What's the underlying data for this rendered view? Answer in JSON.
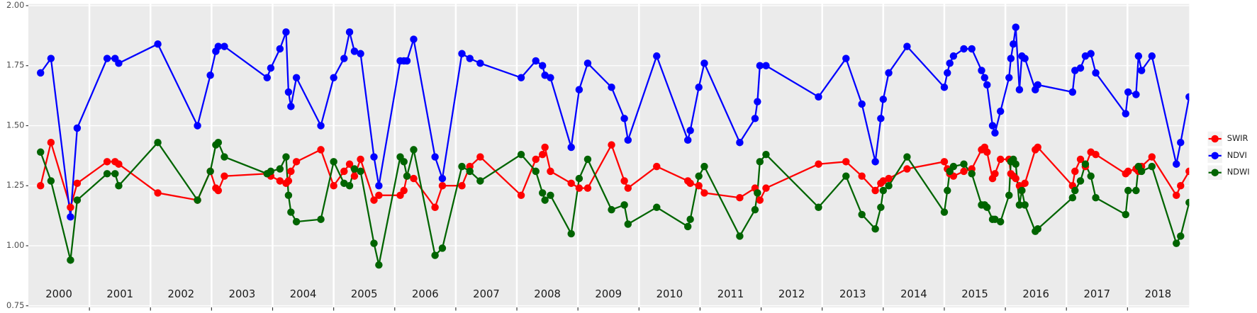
{
  "chart_data": {
    "type": "line",
    "x": [
      2000.2,
      2000.37,
      2000.69,
      2000.8,
      2001.29,
      2001.42,
      2001.48,
      2002.12,
      2002.77,
      2002.98,
      2003.07,
      2003.11,
      2003.21,
      2003.91,
      2003.97,
      2004.12,
      2004.22,
      2004.26,
      2004.3,
      2004.39,
      2004.79,
      2005.0,
      2005.17,
      2005.26,
      2005.34,
      2005.44,
      2005.66,
      2005.74,
      2006.09,
      2006.15,
      2006.2,
      2006.31,
      2006.66,
      2006.78,
      2007.1,
      2007.23,
      2007.4,
      2008.07,
      2008.31,
      2008.42,
      2008.46,
      2008.55,
      2008.89,
      2009.02,
      2009.16,
      2009.55,
      2009.76,
      2009.82,
      2010.29,
      2010.8,
      2010.84,
      2010.98,
      2011.07,
      2011.65,
      2011.9,
      2011.94,
      2011.98,
      2012.08,
      2012.94,
      2013.39,
      2013.65,
      2013.87,
      2013.96,
      2014.0,
      2014.09,
      2014.39,
      2015.0,
      2015.05,
      2015.09,
      2015.15,
      2015.32,
      2015.45,
      2015.61,
      2015.66,
      2015.7,
      2015.79,
      2015.83,
      2015.92,
      2016.06,
      2016.09,
      2016.13,
      2016.17,
      2016.23,
      2016.27,
      2016.32,
      2016.49,
      2016.53,
      2017.1,
      2017.14,
      2017.23,
      2017.31,
      2017.4,
      2017.48,
      2017.97,
      2018.01,
      2018.14,
      2018.18,
      2018.23,
      2018.4,
      2018.8,
      2018.87,
      2019.01
    ],
    "series": [
      {
        "name": "SWIR",
        "color": "#ff0000",
        "values": [
          1.25,
          1.43,
          1.16,
          1.26,
          1.35,
          1.35,
          1.34,
          1.22,
          1.19,
          1.31,
          1.24,
          1.23,
          1.29,
          1.3,
          1.29,
          1.27,
          1.26,
          1.27,
          1.31,
          1.35,
          1.4,
          1.25,
          1.31,
          1.34,
          1.29,
          1.36,
          1.19,
          1.21,
          1.21,
          1.23,
          1.29,
          1.28,
          1.16,
          1.25,
          1.25,
          1.33,
          1.37,
          1.21,
          1.36,
          1.38,
          1.41,
          1.31,
          1.26,
          1.24,
          1.24,
          1.42,
          1.27,
          1.24,
          1.33,
          1.27,
          1.26,
          1.25,
          1.22,
          1.2,
          1.24,
          1.22,
          1.19,
          1.24,
          1.34,
          1.35,
          1.29,
          1.23,
          1.26,
          1.27,
          1.28,
          1.32,
          1.35,
          1.32,
          1.3,
          1.29,
          1.31,
          1.32,
          1.4,
          1.41,
          1.39,
          1.28,
          1.3,
          1.36,
          1.36,
          1.3,
          1.29,
          1.28,
          1.25,
          1.23,
          1.26,
          1.4,
          1.41,
          1.25,
          1.31,
          1.36,
          1.33,
          1.39,
          1.38,
          1.3,
          1.31,
          1.32,
          1.31,
          1.33,
          1.37,
          1.21,
          1.25,
          1.31
        ]
      },
      {
        "name": "NDVI",
        "color": "#0000ff",
        "values": [
          1.72,
          1.78,
          1.12,
          1.49,
          1.78,
          1.78,
          1.76,
          1.84,
          1.5,
          1.71,
          1.81,
          1.83,
          1.83,
          1.7,
          1.74,
          1.82,
          1.89,
          1.64,
          1.58,
          1.7,
          1.5,
          1.7,
          1.78,
          1.89,
          1.81,
          1.8,
          1.37,
          1.25,
          1.77,
          1.77,
          1.77,
          1.86,
          1.37,
          1.28,
          1.8,
          1.78,
          1.76,
          1.7,
          1.77,
          1.75,
          1.71,
          1.7,
          1.41,
          1.65,
          1.76,
          1.66,
          1.53,
          1.44,
          1.79,
          1.44,
          1.48,
          1.66,
          1.76,
          1.43,
          1.53,
          1.6,
          1.75,
          1.75,
          1.62,
          1.78,
          1.59,
          1.35,
          1.53,
          1.61,
          1.72,
          1.83,
          1.66,
          1.72,
          1.76,
          1.79,
          1.82,
          1.82,
          1.73,
          1.7,
          1.67,
          1.5,
          1.47,
          1.56,
          1.7,
          1.78,
          1.84,
          1.91,
          1.65,
          1.79,
          1.78,
          1.65,
          1.67,
          1.64,
          1.73,
          1.74,
          1.79,
          1.8,
          1.72,
          1.55,
          1.64,
          1.63,
          1.79,
          1.73,
          1.79,
          1.34,
          1.43,
          1.62
        ]
      },
      {
        "name": "NDWI",
        "color": "#006400",
        "values": [
          1.39,
          1.27,
          0.94,
          1.19,
          1.3,
          1.3,
          1.25,
          1.43,
          1.19,
          1.31,
          1.42,
          1.43,
          1.37,
          1.3,
          1.31,
          1.32,
          1.37,
          1.21,
          1.14,
          1.1,
          1.11,
          1.35,
          1.26,
          1.25,
          1.32,
          1.31,
          1.01,
          0.92,
          1.37,
          1.35,
          1.29,
          1.4,
          0.96,
          0.99,
          1.33,
          1.31,
          1.27,
          1.38,
          1.31,
          1.22,
          1.19,
          1.21,
          1.05,
          1.28,
          1.36,
          1.15,
          1.17,
          1.09,
          1.16,
          1.08,
          1.11,
          1.29,
          1.33,
          1.04,
          1.15,
          1.22,
          1.35,
          1.38,
          1.16,
          1.29,
          1.13,
          1.07,
          1.16,
          1.23,
          1.25,
          1.37,
          1.14,
          1.23,
          1.31,
          1.33,
          1.34,
          1.3,
          1.17,
          1.17,
          1.16,
          1.11,
          1.11,
          1.1,
          1.21,
          1.35,
          1.36,
          1.34,
          1.17,
          1.23,
          1.17,
          1.06,
          1.07,
          1.2,
          1.23,
          1.27,
          1.34,
          1.29,
          1.2,
          1.13,
          1.23,
          1.23,
          1.33,
          1.31,
          1.33,
          1.01,
          1.04,
          1.18
        ]
      }
    ],
    "xlim": [
      2000,
      2019.01
    ],
    "xticks": [
      2001,
      2002,
      2003,
      2004,
      2005,
      2006,
      2007,
      2008,
      2009,
      2010,
      2011,
      2012,
      2013,
      2014,
      2015,
      2016,
      2017,
      2018
    ],
    "ylim": [
      0.75,
      2.0
    ],
    "yticks": [
      0.75,
      {
        "value": 1,
        "label": "1.00"
      },
      1.25,
      {
        "value": 1.5,
        "label": "1.50"
      },
      1.75,
      {
        "value": 2,
        "label": "2.00"
      }
    ],
    "grid": true,
    "legend": "right",
    "annotations": [
      {
        "text": "2000",
        "x": 2000.5
      },
      {
        "text": "2001",
        "x": 2001.5
      },
      {
        "text": "2002",
        "x": 2002.5
      },
      {
        "text": "2003",
        "x": 2003.5
      },
      {
        "text": "2004",
        "x": 2004.5
      },
      {
        "text": "2005",
        "x": 2005.5
      },
      {
        "text": "2006",
        "x": 2006.5
      },
      {
        "text": "2007",
        "x": 2007.5
      },
      {
        "text": "2008",
        "x": 2008.5
      },
      {
        "text": "2009",
        "x": 2009.5
      },
      {
        "text": "2010",
        "x": 2010.5
      },
      {
        "text": "2011",
        "x": 2011.5
      },
      {
        "text": "2012",
        "x": 2012.5
      },
      {
        "text": "2013",
        "x": 2013.5
      },
      {
        "text": "2014",
        "x": 2014.5
      },
      {
        "text": "2015",
        "x": 2015.5
      },
      {
        "text": "2016",
        "x": 2016.5
      },
      {
        "text": "2017",
        "x": 2017.5
      },
      {
        "text": "2018",
        "x": 2018.5
      }
    ]
  }
}
